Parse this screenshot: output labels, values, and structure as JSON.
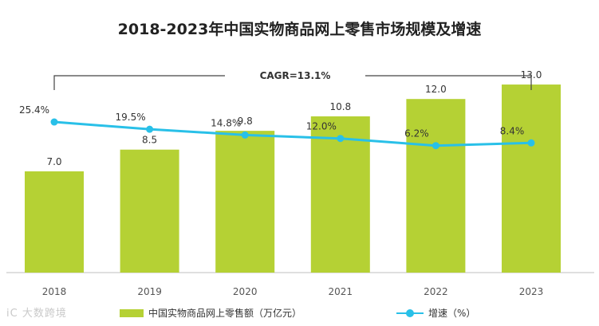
{
  "chart_data": {
    "type": "bar+line",
    "title": "2018-2023年中国实物商品网上零售市场规模及增速",
    "categories": [
      "2018",
      "2019",
      "2020",
      "2021",
      "2022",
      "2023"
    ],
    "series": [
      {
        "name": "中国实物商品网上零售额（万亿元）",
        "type": "bar",
        "values": [
          7.0,
          8.5,
          9.8,
          10.8,
          12.0,
          13.0
        ],
        "labels": [
          "7.0",
          "8.5",
          "9.8",
          "10.8",
          "12.0",
          "13.0"
        ],
        "color": "#b5d134"
      },
      {
        "name": "增速（%）",
        "type": "line",
        "values": [
          25.4,
          19.5,
          14.8,
          12.0,
          6.2,
          8.4
        ],
        "labels": [
          "25.4%",
          "19.5%",
          "14.8%",
          "12.0%",
          "6.2%",
          "8.4%"
        ],
        "color": "#29c0e8"
      }
    ],
    "annotation": "CAGR=13.1%",
    "legend_position": "bottom"
  },
  "watermark": "iC 大数跨境"
}
